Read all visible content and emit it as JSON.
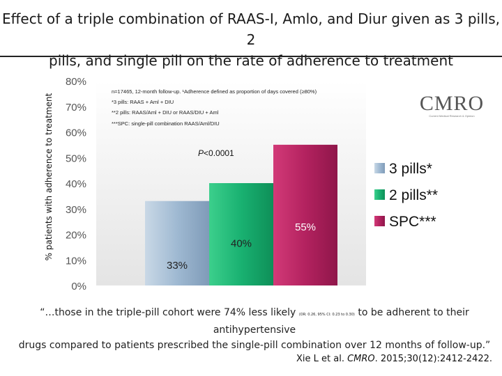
{
  "header": {
    "title_line1": "Effect of a triple combination of RAAS-I, Amlo, and Diur given as 3 pills, 2",
    "title_line2": "pills, and single pill on the rate of adherence to treatment"
  },
  "notes": {
    "line1": "n=17465, 12-month follow-up. ¹Adherence defined as proportion of days covered (≥80%)",
    "line2": "*3 pills: RAAS + Aml + DIU",
    "line3": "**2 pills: RAAS/Aml + DIU or RAAS/DIU + Aml",
    "line4": "***SPC: single-pill combination RAAS/Aml/DIU",
    "pvalue_italic": "P",
    "pvalue_rest": "<0.0001"
  },
  "logo": {
    "text": "CMRO",
    "subtext": "Current Medical Research & Opinion"
  },
  "quote": {
    "part1": "“…those in the triple-pill cohort were 74% less likely ",
    "small": "(OR: 0.26, 95% CI: 0.23 to 0.30)",
    "part2": " to be adherent to their antihypertensive",
    "line2": "drugs compared to patients prescribed the single-pill combination over 12 months of follow-up.”"
  },
  "citation": {
    "authors": "Xie L et al. ",
    "journal": "CMRO",
    "rest": ". 2015;30(12):2412-2422."
  },
  "chart_data": {
    "type": "bar",
    "ylabel": "% patients with adherence to treatment",
    "ylim": [
      0,
      80
    ],
    "yticks": [
      "0%",
      "10%",
      "20%",
      "30%",
      "40%",
      "50%",
      "60%",
      "70%",
      "80%"
    ],
    "grid": false,
    "legend_position": "right",
    "categories": [
      "3 pills*",
      "2 pills**",
      "SPC***"
    ],
    "values": [
      33,
      40,
      55
    ],
    "data_labels": [
      "33%",
      "40%",
      "55%"
    ],
    "colors": [
      "#8ca9c6",
      "#17a86a",
      "#b0215e"
    ],
    "legend": [
      "3 pills*",
      "2 pills**",
      "SPC***"
    ]
  }
}
